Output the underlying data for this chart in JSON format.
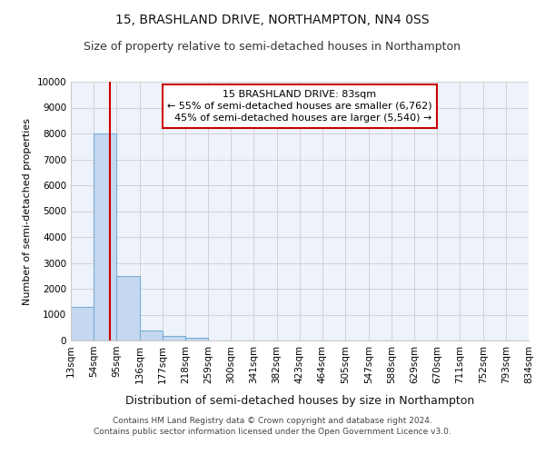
{
  "title": "15, BRASHLAND DRIVE, NORTHAMPTON, NN4 0SS",
  "subtitle": "Size of property relative to semi-detached houses in Northampton",
  "xlabel": "Distribution of semi-detached houses by size in Northampton",
  "ylabel": "Number of semi-detached properties",
  "footer_line1": "Contains HM Land Registry data © Crown copyright and database right 2024.",
  "footer_line2": "Contains public sector information licensed under the Open Government Licence v3.0.",
  "bar_edges": [
    13,
    54,
    95,
    136,
    177,
    218,
    259,
    300,
    341,
    382,
    423,
    464,
    505,
    547,
    588,
    629,
    670,
    711,
    752,
    793,
    834
  ],
  "bar_heights": [
    1300,
    8000,
    2500,
    400,
    175,
    100,
    5,
    5,
    5,
    5,
    5,
    5,
    5,
    5,
    5,
    5,
    5,
    5,
    5,
    5
  ],
  "bar_color": "#c5d8f0",
  "bar_edge_color": "#7aaed6",
  "property_size": 83,
  "property_label": "15 BRASHLAND DRIVE: 83sqm",
  "pct_smaller": 55,
  "pct_smaller_count": "6,762",
  "pct_larger": 45,
  "pct_larger_count": "5,540",
  "vline_color": "#cc0000",
  "ylim": [
    0,
    10000
  ],
  "yticks": [
    0,
    1000,
    2000,
    3000,
    4000,
    5000,
    6000,
    7000,
    8000,
    9000,
    10000
  ],
  "grid_color": "#cccccc",
  "bg_color": "#edf2fb",
  "title_fontsize": 10,
  "subtitle_fontsize": 9,
  "tick_fontsize": 7.5,
  "ylabel_fontsize": 8,
  "xlabel_fontsize": 9,
  "footer_fontsize": 6.5,
  "annot_fontsize": 8
}
